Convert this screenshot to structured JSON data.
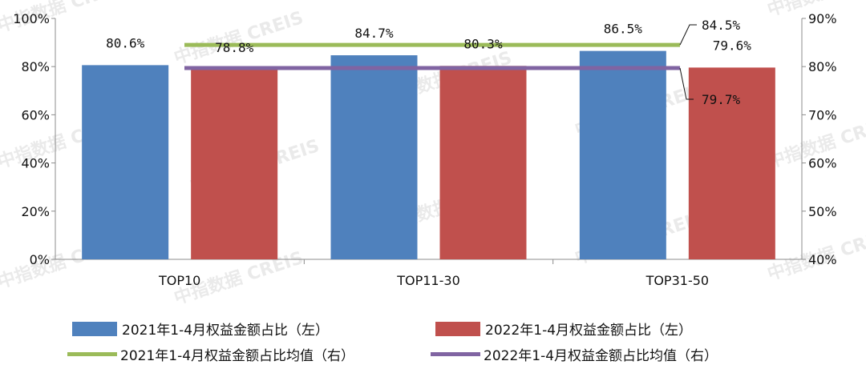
{
  "chart_data": {
    "type": "bar",
    "categories": [
      "TOP10",
      "TOP11-30",
      "TOP31-50"
    ],
    "series": [
      {
        "name": "2021年1-4月权益金额占比（左）",
        "axis": "left",
        "kind": "bar",
        "color": "#4f81bd",
        "values": [
          80.6,
          84.7,
          86.5
        ],
        "labels": [
          "80.6%",
          "84.7%",
          "86.5%"
        ]
      },
      {
        "name": "2022年1-4月权益金额占比（左）",
        "axis": "left",
        "kind": "bar",
        "color": "#c0504d",
        "values": [
          78.8,
          80.3,
          79.6
        ],
        "labels": [
          "78.8%",
          "80.3%",
          "79.6%"
        ]
      },
      {
        "name": "2021年1-4月权益金额占比均值（右）",
        "axis": "right",
        "kind": "line",
        "color": "#9bbb59",
        "value": 84.5,
        "label": "84.5%"
      },
      {
        "name": "2022年1-4月权益金额占比均值（右）",
        "axis": "right",
        "kind": "line",
        "color": "#8064a2",
        "value": 79.7,
        "label": "79.7%"
      }
    ],
    "y_left": {
      "min": 0,
      "max": 100,
      "ticks": [
        "0%",
        "20%",
        "40%",
        "60%",
        "80%",
        "100%"
      ]
    },
    "y_right": {
      "min": 40,
      "max": 90,
      "ticks": [
        "40%",
        "50%",
        "60%",
        "70%",
        "80%",
        "90%"
      ]
    },
    "grid": false,
    "legend": "bottom"
  },
  "watermark": {
    "text": "中指数据 CREIS"
  }
}
